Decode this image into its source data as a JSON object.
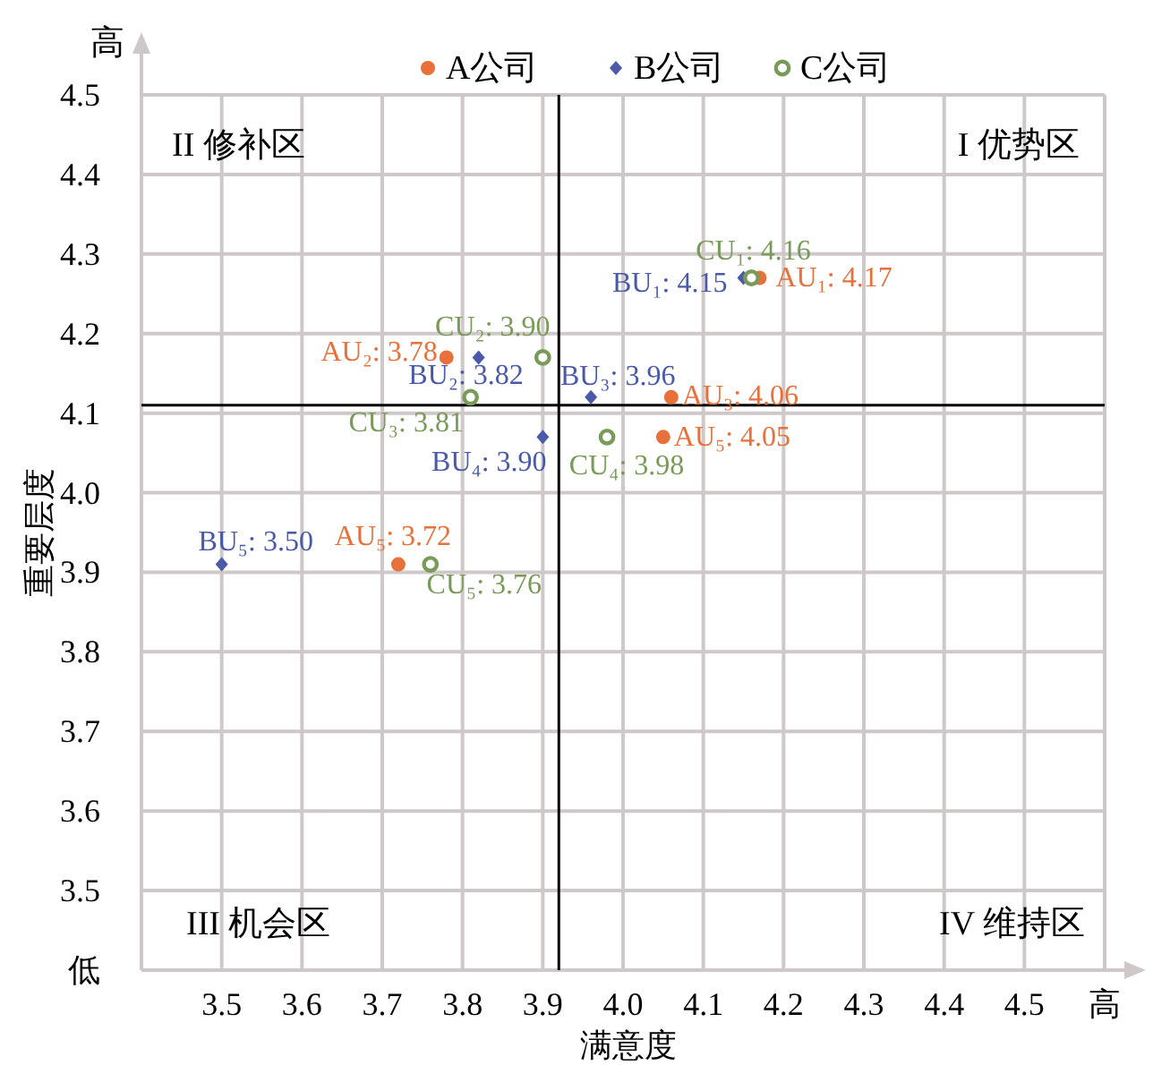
{
  "chart_data": {
    "type": "scatter",
    "xlabel": "满意度",
    "ylabel": "重要层度",
    "xlim": [
      3.4,
      4.6
    ],
    "ylim": [
      3.4,
      4.5
    ],
    "xticks": [
      3.5,
      3.6,
      3.7,
      3.8,
      3.9,
      {
        "value": 4.0,
        "label": "4.0"
      },
      4.1,
      4.2,
      4.3,
      4.4,
      4.5,
      {
        "value": 4.6,
        "label": "高"
      }
    ],
    "yticks": [
      {
        "value": 3.4,
        "label": "低"
      },
      3.5,
      3.6,
      3.7,
      3.8,
      3.9,
      {
        "value": 4.0,
        "label": "4.0"
      },
      4.1,
      4.2,
      4.3,
      4.4,
      4.5
    ],
    "grid": true,
    "legend": "top",
    "ref_lines": [
      {
        "axis": "x",
        "value": 3.92,
        "color": "#000000"
      },
      {
        "axis": "y",
        "value": 4.11,
        "color": "#000000"
      }
    ],
    "annotations": [
      "高",
      "II 修补区",
      "I 优势区",
      "III 机会区",
      "IV 维持区",
      {
        "text": "AU₁: 4.17",
        "x": 4.17,
        "y": 4.27
      },
      {
        "text": "AU₂: 3.78",
        "x": 3.78,
        "y": 4.17
      },
      {
        "text": "AU₃: 4.06",
        "x": 4.06,
        "y": 4.12
      },
      {
        "text": "AU₅: 4.05",
        "x": 4.05,
        "y": 4.07
      },
      {
        "text": "AU₅: 3.72",
        "x": 3.72,
        "y": 3.91
      },
      {
        "text": "BU₁: 4.15",
        "x": 4.15,
        "y": 4.27
      },
      {
        "text": "BU₂: 3.82",
        "x": 3.82,
        "y": 4.17
      },
      {
        "text": "BU₃: 3.96",
        "x": 3.96,
        "y": 4.12
      },
      {
        "text": "BU₄: 3.90",
        "x": 3.9,
        "y": 4.07
      },
      {
        "text": "BU₅: 3.50",
        "x": 3.5,
        "y": 3.91
      },
      {
        "text": "CU₁: 4.16",
        "x": 4.16,
        "y": 4.27
      },
      {
        "text": "CU₂: 3.90",
        "x": 3.9,
        "y": 4.17
      },
      {
        "text": "CU₃: 3.81",
        "x": 3.81,
        "y": 4.12
      },
      {
        "text": "CU₄: 3.98",
        "x": 3.98,
        "y": 4.07
      },
      {
        "text": "CU₅: 3.76",
        "x": 3.76,
        "y": 3.91
      }
    ],
    "series": [
      {
        "name": "A公司",
        "color": "#e8703a",
        "marker": "circle",
        "x": [
          4.17,
          3.78,
          4.06,
          4.05,
          3.72
        ],
        "values": [
          4.27,
          4.17,
          4.12,
          4.07,
          3.91
        ]
      },
      {
        "name": "B公司",
        "color": "#4a5aa8",
        "marker": "diamond",
        "x": [
          4.15,
          3.82,
          3.96,
          3.9,
          3.5
        ],
        "values": [
          4.27,
          4.17,
          4.12,
          4.07,
          3.91
        ]
      },
      {
        "name": "C公司",
        "color": "#7a9a5a",
        "marker": "circle",
        "x": [
          4.16,
          3.9,
          3.81,
          3.98,
          3.76
        ],
        "values": [
          4.27,
          4.17,
          4.12,
          4.07,
          3.91
        ]
      }
    ]
  }
}
